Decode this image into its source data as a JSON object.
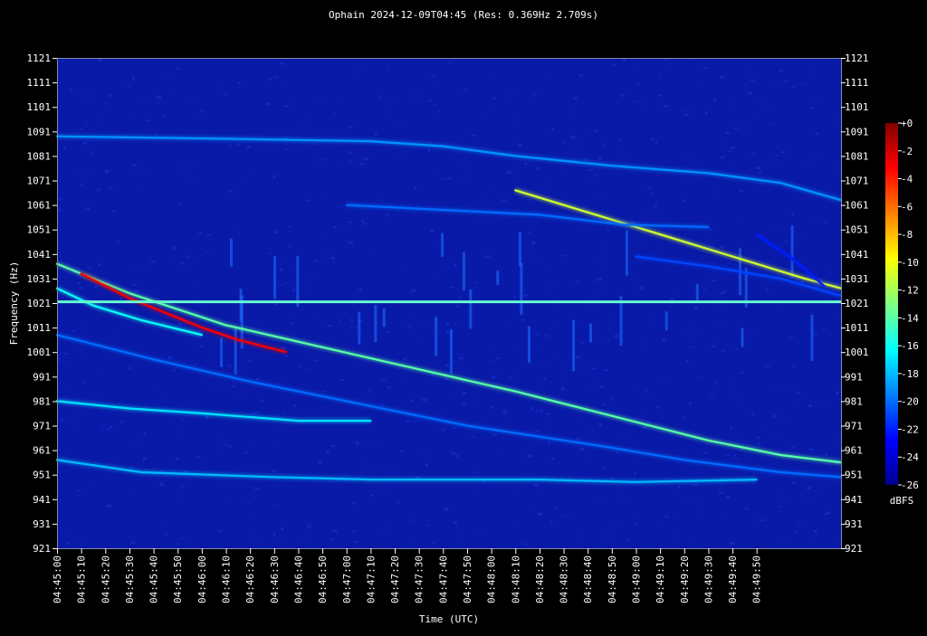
{
  "chart_data": {
    "type": "heatmap",
    "title": "Ophain 2024-12-09T04:45 (Res: 0.369Hz 2.709s)",
    "xlabel": "Time (UTC)",
    "ylabel": "Frequency (Hz)",
    "x_start": "04:45:00",
    "x_end_seconds": 325,
    "ylim": [
      921,
      1121
    ],
    "y_ticks": [
      921,
      931,
      941,
      951,
      961,
      971,
      981,
      991,
      1001,
      1011,
      1021,
      1031,
      1041,
      1051,
      1061,
      1071,
      1081,
      1091,
      1101,
      1111,
      1121
    ],
    "x_ticks": [
      "04:45:00",
      "04:45:10",
      "04:45:20",
      "04:45:30",
      "04:45:40",
      "04:45:50",
      "04:46:00",
      "04:46:10",
      "04:46:20",
      "04:46:30",
      "04:46:40",
      "04:46:50",
      "04:47:00",
      "04:47:10",
      "04:47:20",
      "04:47:30",
      "04:47:40",
      "04:47:50",
      "04:48:00",
      "04:48:10",
      "04:48:20",
      "04:48:30",
      "04:48:40",
      "04:48:50",
      "04:49:00",
      "04:49:10",
      "04:49:20",
      "04:49:30",
      "04:49:40",
      "04:49:50"
    ],
    "colorbar": {
      "label": "dBFS",
      "range": [
        -26,
        0
      ],
      "ticks": [
        "+0",
        "-2",
        "-4",
        "-6",
        "-8",
        "-10",
        "-12",
        "-14",
        "-16",
        "-18",
        "-20",
        "-22",
        "-24",
        "-26"
      ]
    },
    "background_color": "#0a1aa8",
    "carrier": {
      "freq_hz": 1021.5,
      "color": "#66ffd0"
    },
    "traces": [
      {
        "points": [
          [
            0,
            1037
          ],
          [
            30,
            1025
          ],
          [
            70,
            1012
          ],
          [
            110,
            1003
          ],
          [
            150,
            994
          ],
          [
            190,
            985
          ],
          [
            230,
            975
          ],
          [
            270,
            965
          ],
          [
            300,
            959
          ],
          [
            325,
            956
          ]
        ],
        "level": -14
      },
      {
        "points": [
          [
            10,
            1033
          ],
          [
            20,
            1028
          ],
          [
            30,
            1023
          ],
          [
            45,
            1017
          ],
          [
            60,
            1011
          ],
          [
            75,
            1006
          ],
          [
            95,
            1001
          ]
        ],
        "level": -3
      },
      {
        "points": [
          [
            0,
            1027
          ],
          [
            15,
            1020
          ],
          [
            35,
            1014
          ],
          [
            60,
            1008
          ]
        ],
        "level": -16
      },
      {
        "points": [
          [
            0,
            1008
          ],
          [
            40,
            998
          ],
          [
            80,
            989
          ],
          [
            120,
            981
          ],
          [
            170,
            971
          ],
          [
            230,
            962
          ],
          [
            260,
            957
          ],
          [
            300,
            952
          ],
          [
            325,
            950
          ]
        ],
        "level": -20
      },
      {
        "points": [
          [
            0,
            981
          ],
          [
            30,
            978
          ],
          [
            60,
            976
          ],
          [
            100,
            973
          ],
          [
            130,
            973
          ]
        ],
        "level": -17
      },
      {
        "points": [
          [
            0,
            957
          ],
          [
            35,
            952
          ],
          [
            90,
            950
          ],
          [
            130,
            949
          ],
          [
            200,
            949
          ],
          [
            240,
            948
          ],
          [
            290,
            949
          ]
        ],
        "level": -18
      },
      {
        "points": [
          [
            0,
            1089
          ],
          [
            70,
            1088
          ],
          [
            130,
            1087
          ],
          [
            160,
            1085
          ],
          [
            190,
            1081
          ],
          [
            230,
            1077
          ],
          [
            270,
            1074
          ],
          [
            300,
            1070
          ],
          [
            325,
            1063
          ]
        ],
        "level": -19
      },
      {
        "points": [
          [
            190,
            1067
          ],
          [
            220,
            1058
          ],
          [
            250,
            1049
          ],
          [
            280,
            1040
          ],
          [
            310,
            1031
          ],
          [
            325,
            1027
          ]
        ],
        "level": -11
      },
      {
        "points": [
          [
            120,
            1061
          ],
          [
            200,
            1057
          ],
          [
            235,
            1053
          ],
          [
            270,
            1052
          ]
        ],
        "level": -20
      },
      {
        "points": [
          [
            240,
            1040
          ],
          [
            270,
            1036
          ],
          [
            300,
            1031
          ],
          [
            325,
            1024
          ]
        ],
        "level": -21
      },
      {
        "points": [
          [
            290,
            1049
          ],
          [
            305,
            1039
          ],
          [
            318,
            1028
          ]
        ],
        "level": -22
      }
    ]
  }
}
